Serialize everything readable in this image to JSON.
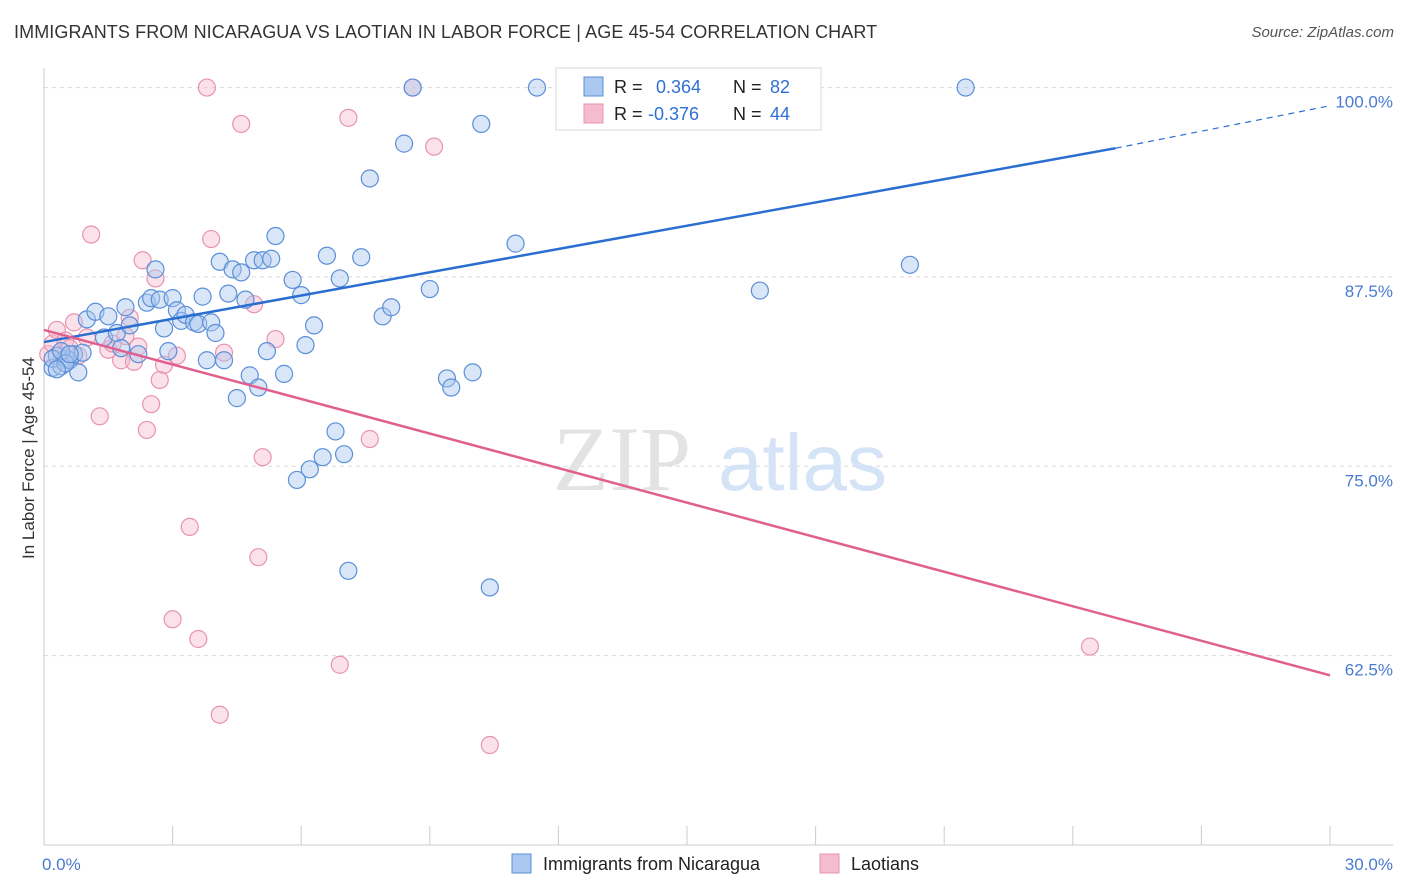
{
  "title": "IMMIGRANTS FROM NICARAGUA VS LAOTIAN IN LABOR FORCE | AGE 45-54 CORRELATION CHART",
  "source": "Source: ZipAtlas.com",
  "watermark": {
    "zip": "ZIP",
    "atlas": "atlas"
  },
  "colors": {
    "blue_fill": "#aac8f0",
    "blue_stroke": "#5b8fd8",
    "blue_line": "#2a6fd0",
    "pink_fill": "#f5bcd0",
    "pink_stroke": "#e893b0",
    "pink_line": "#e0608f"
  },
  "legend": {
    "r_label": "R =",
    "n_label": "N =",
    "blue": {
      "r": "0.364",
      "n": "82"
    },
    "pink": {
      "r": "-0.376",
      "n": "44"
    }
  },
  "chart_data": {
    "type": "scatter",
    "xlabel": "",
    "ylabel": "In Labor Force | Age 45-54",
    "xlim": [
      0,
      30
    ],
    "ylim": [
      50,
      100.5
    ],
    "x_tick_labels": [
      "0.0%",
      "30.0%"
    ],
    "y_ticks": [
      62.5,
      75.0,
      87.5,
      100.0
    ],
    "y_tick_labels": [
      "62.5%",
      "75.0%",
      "87.5%",
      "100.0%"
    ],
    "grid": "horizontal dashed",
    "legend_placement": "top-center",
    "series": [
      {
        "name": "Immigrants from Nicaragua",
        "points": [
          [
            0.2,
            81.5
          ],
          [
            0.3,
            82.3
          ],
          [
            0.4,
            81.6
          ],
          [
            0.5,
            82.1
          ],
          [
            0.6,
            82.0
          ],
          [
            0.7,
            82.4
          ],
          [
            0.8,
            81.2
          ],
          [
            0.9,
            82.5
          ],
          [
            0.2,
            82.1
          ],
          [
            0.4,
            82.6
          ],
          [
            0.5,
            81.8
          ],
          [
            0.6,
            82.4
          ],
          [
            0.3,
            81.4
          ],
          [
            1.0,
            84.7
          ],
          [
            1.2,
            85.2
          ],
          [
            1.4,
            83.5
          ],
          [
            1.5,
            84.9
          ],
          [
            1.7,
            83.8
          ],
          [
            1.8,
            82.8
          ],
          [
            1.9,
            85.5
          ],
          [
            2.0,
            84.3
          ],
          [
            2.2,
            82.4
          ],
          [
            2.4,
            85.8
          ],
          [
            2.5,
            86.1
          ],
          [
            2.6,
            88.0
          ],
          [
            2.7,
            86.0
          ],
          [
            2.8,
            84.1
          ],
          [
            2.9,
            82.6
          ],
          [
            3.0,
            86.1
          ],
          [
            3.1,
            85.3
          ],
          [
            3.2,
            84.6
          ],
          [
            3.3,
            85.0
          ],
          [
            3.5,
            84.5
          ],
          [
            3.6,
            84.4
          ],
          [
            3.7,
            86.2
          ],
          [
            3.8,
            82.0
          ],
          [
            3.9,
            84.5
          ],
          [
            4.0,
            83.8
          ],
          [
            4.1,
            88.5
          ],
          [
            4.2,
            82.0
          ],
          [
            4.3,
            86.4
          ],
          [
            4.4,
            88.0
          ],
          [
            4.5,
            79.5
          ],
          [
            4.6,
            87.8
          ],
          [
            4.7,
            86.0
          ],
          [
            4.8,
            81.0
          ],
          [
            4.9,
            88.6
          ],
          [
            5.0,
            80.2
          ],
          [
            5.1,
            88.6
          ],
          [
            5.2,
            82.6
          ],
          [
            5.3,
            88.7
          ],
          [
            5.4,
            90.2
          ],
          [
            5.6,
            81.1
          ],
          [
            5.8,
            87.3
          ],
          [
            5.9,
            74.1
          ],
          [
            6.0,
            86.3
          ],
          [
            6.1,
            83.0
          ],
          [
            6.2,
            74.8
          ],
          [
            6.3,
            84.3
          ],
          [
            6.5,
            75.6
          ],
          [
            6.6,
            88.9
          ],
          [
            6.8,
            77.3
          ],
          [
            6.9,
            87.4
          ],
          [
            7.0,
            75.8
          ],
          [
            7.1,
            68.1
          ],
          [
            7.4,
            88.8
          ],
          [
            7.6,
            94.0
          ],
          [
            7.9,
            84.9
          ],
          [
            8.1,
            85.5
          ],
          [
            8.4,
            96.3
          ],
          [
            8.6,
            100.0
          ],
          [
            9.0,
            86.7
          ],
          [
            9.4,
            80.8
          ],
          [
            9.5,
            80.2
          ],
          [
            10.0,
            81.2
          ],
          [
            10.2,
            97.6
          ],
          [
            10.4,
            67.0
          ],
          [
            11.0,
            89.7
          ],
          [
            11.5,
            100.0
          ],
          [
            16.7,
            86.6
          ],
          [
            20.2,
            88.3
          ],
          [
            21.5,
            100.0
          ]
        ]
      },
      {
        "name": "Laotians",
        "points": [
          [
            0.1,
            82.4
          ],
          [
            0.2,
            83.1
          ],
          [
            0.3,
            84.0
          ],
          [
            0.4,
            82.0
          ],
          [
            0.5,
            83.3
          ],
          [
            0.6,
            82.8
          ],
          [
            0.7,
            84.5
          ],
          [
            0.8,
            82.3
          ],
          [
            1.0,
            83.5
          ],
          [
            1.1,
            90.3
          ],
          [
            1.3,
            78.3
          ],
          [
            1.5,
            82.7
          ],
          [
            1.6,
            83.1
          ],
          [
            1.8,
            82.0
          ],
          [
            1.9,
            83.6
          ],
          [
            2.0,
            84.8
          ],
          [
            2.1,
            81.9
          ],
          [
            2.2,
            82.9
          ],
          [
            2.3,
            88.6
          ],
          [
            2.4,
            77.4
          ],
          [
            2.5,
            79.1
          ],
          [
            2.6,
            87.4
          ],
          [
            2.7,
            80.7
          ],
          [
            2.8,
            81.7
          ],
          [
            3.0,
            64.9
          ],
          [
            3.1,
            82.3
          ],
          [
            3.4,
            71.0
          ],
          [
            3.6,
            63.6
          ],
          [
            3.8,
            100.0
          ],
          [
            3.9,
            90.0
          ],
          [
            4.1,
            58.6
          ],
          [
            4.2,
            82.5
          ],
          [
            4.6,
            97.6
          ],
          [
            4.9,
            85.7
          ],
          [
            5.0,
            69.0
          ],
          [
            5.1,
            75.6
          ],
          [
            5.4,
            83.4
          ],
          [
            6.9,
            61.9
          ],
          [
            7.1,
            98.0
          ],
          [
            7.6,
            76.8
          ],
          [
            8.6,
            100.0
          ],
          [
            9.1,
            96.1
          ],
          [
            10.4,
            56.6
          ],
          [
            24.4,
            63.1
          ]
        ]
      }
    ],
    "trend_lines": [
      {
        "series": "Immigrants from Nicaragua",
        "x0": 0.0,
        "y0": 83.2,
        "x1": 25.0,
        "y1": 96.0,
        "dashed_to_x": 30.0,
        "dashed_to_y": 98.8
      },
      {
        "series": "Laotians",
        "x0": 0.0,
        "y0": 84.0,
        "x1": 30.0,
        "y1": 61.2
      }
    ]
  }
}
